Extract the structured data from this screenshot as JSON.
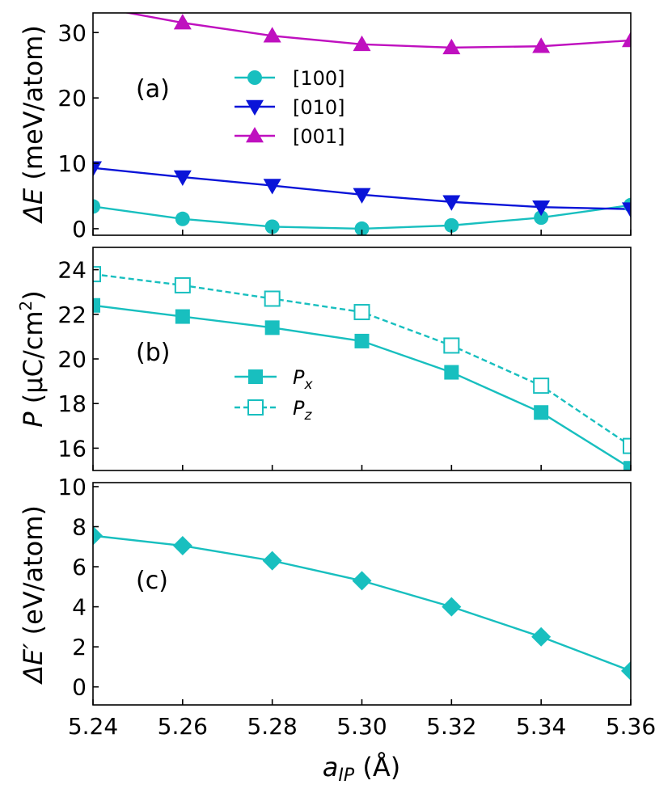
{
  "colors": {
    "cyan": "#18bfbf",
    "blue": "#0a14d8",
    "magenta": "#bf10bf",
    "axis": "#000000"
  },
  "chart_data": [
    {
      "type": "line",
      "panel_label": "(a)",
      "ylabel_main": "ΔE",
      "ylabel_unit": " (meV/atom)",
      "x": [
        5.24,
        5.26,
        5.28,
        5.3,
        5.32,
        5.34,
        5.36
      ],
      "xlim": [
        5.24,
        5.36
      ],
      "ylim": [
        -1,
        33
      ],
      "yticks": [
        0,
        10,
        20,
        30
      ],
      "ytick_labels": [
        "0",
        "10",
        "20",
        "30"
      ],
      "legend_position": "upper-middle",
      "series": [
        {
          "name": "[100]",
          "marker": "circle",
          "color": "#18bfbf",
          "dash": "solid",
          "fill": "filled",
          "values": [
            3.4,
            1.5,
            0.3,
            0.0,
            0.5,
            1.7,
            3.6
          ]
        },
        {
          "name": "[010]",
          "marker": "triangle-down",
          "color": "#0a14d8",
          "dash": "solid",
          "fill": "filled",
          "values": [
            9.3,
            7.9,
            6.6,
            5.2,
            4.1,
            3.3,
            3.0
          ]
        },
        {
          "name": "[001]",
          "marker": "triangle-up",
          "color": "#bf10bf",
          "dash": "solid",
          "fill": "filled",
          "values": [
            34.0,
            31.5,
            29.5,
            28.2,
            27.7,
            27.9,
            28.8
          ]
        }
      ]
    },
    {
      "type": "line",
      "panel_label": "(b)",
      "ylabel_main": "P",
      "ylabel_unit": " (μC/cm",
      "ylabel_sup": "2",
      "ylabel_close": ")",
      "x": [
        5.24,
        5.26,
        5.28,
        5.3,
        5.32,
        5.34,
        5.36
      ],
      "xlim": [
        5.24,
        5.36
      ],
      "ylim": [
        15,
        25
      ],
      "yticks": [
        16,
        18,
        20,
        22,
        24
      ],
      "ytick_labels": [
        "16",
        "18",
        "20",
        "22",
        "24"
      ],
      "legend_position": "middle",
      "series": [
        {
          "name": "P",
          "subscript": "x",
          "marker": "square",
          "color": "#18bfbf",
          "dash": "solid",
          "fill": "filled",
          "values": [
            22.4,
            21.9,
            21.4,
            20.8,
            19.4,
            17.6,
            15.1
          ]
        },
        {
          "name": "P",
          "subscript": "z",
          "marker": "square",
          "color": "#18bfbf",
          "dash": "dashed",
          "fill": "open",
          "values": [
            23.8,
            23.3,
            22.7,
            22.1,
            20.6,
            18.8,
            16.1
          ]
        }
      ]
    },
    {
      "type": "line",
      "panel_label": "(c)",
      "ylabel_main": "ΔE′",
      "ylabel_unit": " (eV/atom)",
      "x": [
        5.24,
        5.26,
        5.28,
        5.3,
        5.32,
        5.34,
        5.36
      ],
      "xlim": [
        5.24,
        5.36
      ],
      "ylim": [
        -0.9,
        10.2
      ],
      "yticks": [
        0,
        2,
        4,
        6,
        8,
        10
      ],
      "ytick_labels": [
        "0",
        "2",
        "4",
        "6",
        "8",
        "10"
      ],
      "xticks": [
        5.24,
        5.26,
        5.28,
        5.3,
        5.32,
        5.34,
        5.36
      ],
      "xtick_labels": [
        "5.24",
        "5.26",
        "5.28",
        "5.30",
        "5.32",
        "5.34",
        "5.36"
      ],
      "xlabel_main": "a",
      "xlabel_sub": "IP",
      "xlabel_unit": " (Å)",
      "series": [
        {
          "name": "ΔE′",
          "marker": "diamond",
          "color": "#18bfbf",
          "dash": "solid",
          "fill": "filled",
          "values": [
            7.55,
            7.05,
            6.3,
            5.3,
            4.0,
            2.5,
            0.8
          ]
        }
      ]
    }
  ]
}
